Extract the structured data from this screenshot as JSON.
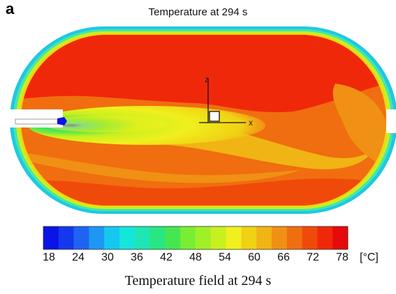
{
  "panel_letter": "a",
  "title": "Temperature at 294 s",
  "caption": "Temperature field at 294 s",
  "axes": {
    "z_label": "z",
    "x_label": "x"
  },
  "colorbar": {
    "unit": "[°C]",
    "ticks": [
      "18",
      "24",
      "30",
      "36",
      "42",
      "48",
      "54",
      "60",
      "66",
      "72",
      "78"
    ],
    "colors": [
      "#0a14e6",
      "#1438ee",
      "#1e64f2",
      "#1e96f4",
      "#14c8f0",
      "#14e6dc",
      "#1ee6b4",
      "#28e682",
      "#46e650",
      "#78ee32",
      "#a0f028",
      "#c8f01e",
      "#f0f01e",
      "#f0d214",
      "#f0b414",
      "#f09014",
      "#f06e0f",
      "#f04a0a",
      "#f0280a",
      "#e60a0a"
    ]
  },
  "colors": {
    "background": "#ffffff",
    "vessel_hot": "#f0280a",
    "vessel_mid": "#f06e0f",
    "vessel_warm": "#f0b414",
    "jet_core": "#0a14e6"
  }
}
